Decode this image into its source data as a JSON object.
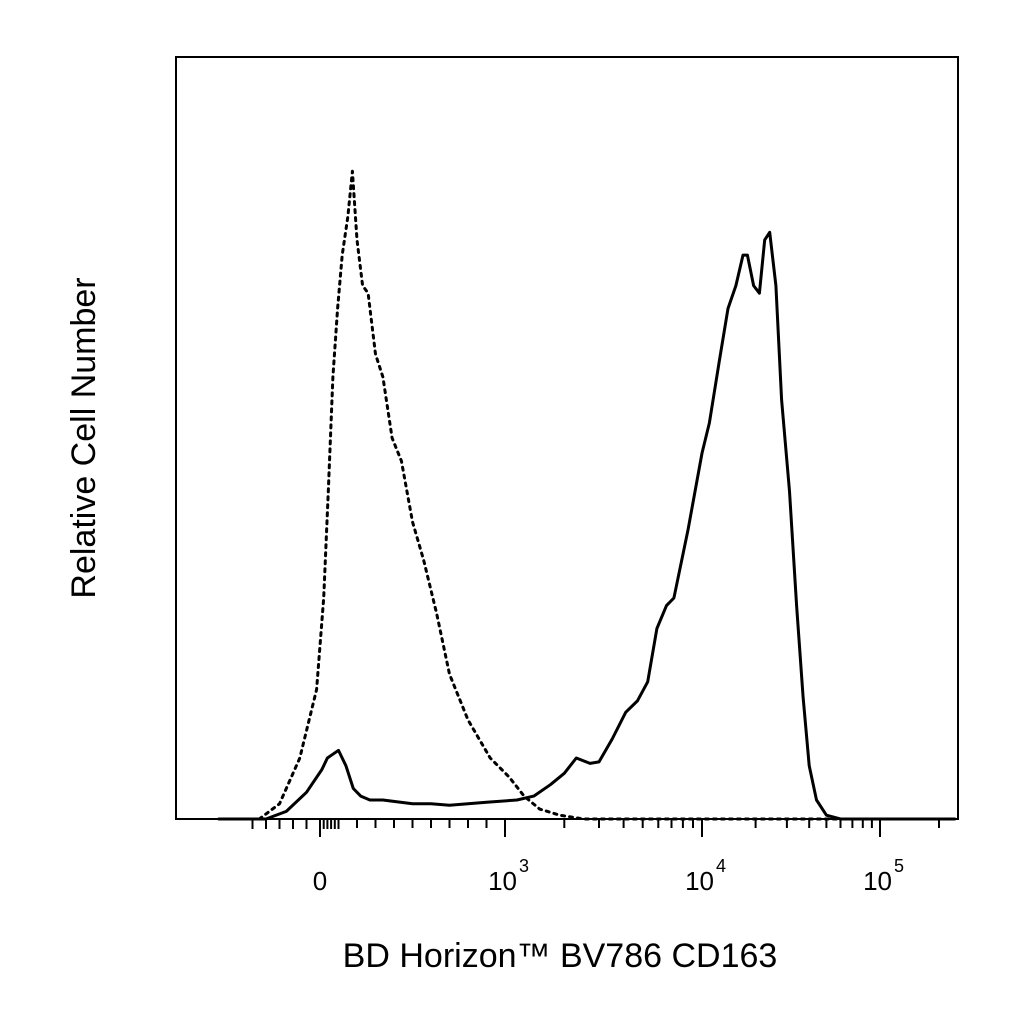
{
  "chart_data": {
    "type": "line",
    "title": "",
    "xlabel": "BD Horizon™ BV786 CD163",
    "ylabel": "Relative Cell Number",
    "x_scale": "biexponential",
    "x_ticks": [
      {
        "value": 0,
        "base": "0",
        "exp": ""
      },
      {
        "value": 1000,
        "base": "10",
        "exp": "3"
      },
      {
        "value": 10000,
        "base": "10",
        "exp": "4"
      },
      {
        "value": 100000,
        "base": "10",
        "exp": "5"
      }
    ],
    "xlim": [
      -150,
      250000
    ],
    "ylim": [
      0,
      1
    ],
    "grid": false,
    "legend": "none",
    "series": [
      {
        "line_style": "dotted",
        "color": "#000000",
        "points": [
          [
            -90,
            0.0
          ],
          [
            -60,
            0.02
          ],
          [
            -30,
            0.08
          ],
          [
            -5,
            0.17
          ],
          [
            20,
            0.29
          ],
          [
            45,
            0.43
          ],
          [
            70,
            0.58
          ],
          [
            95,
            0.67
          ],
          [
            120,
            0.74
          ],
          [
            150,
            0.79
          ],
          [
            175,
            0.85
          ],
          [
            200,
            0.76
          ],
          [
            230,
            0.7
          ],
          [
            260,
            0.69
          ],
          [
            300,
            0.61
          ],
          [
            340,
            0.58
          ],
          [
            390,
            0.5
          ],
          [
            440,
            0.47
          ],
          [
            500,
            0.39
          ],
          [
            560,
            0.34
          ],
          [
            630,
            0.27
          ],
          [
            700,
            0.19
          ],
          [
            800,
            0.13
          ],
          [
            920,
            0.08
          ],
          [
            1050,
            0.055
          ],
          [
            1250,
            0.03
          ],
          [
            1500,
            0.013
          ],
          [
            1900,
            0.005
          ],
          [
            2500,
            0.0
          ],
          [
            8000,
            0.0
          ],
          [
            240000,
            0.0
          ]
        ]
      },
      {
        "line_style": "solid",
        "color": "#000000",
        "points": [
          [
            -150,
            0.0
          ],
          [
            -80,
            0.0
          ],
          [
            -50,
            0.01
          ],
          [
            -20,
            0.035
          ],
          [
            10,
            0.065
          ],
          [
            40,
            0.08
          ],
          [
            70,
            0.085
          ],
          [
            100,
            0.09
          ],
          [
            140,
            0.07
          ],
          [
            180,
            0.04
          ],
          [
            220,
            0.03
          ],
          [
            270,
            0.025
          ],
          [
            340,
            0.025
          ],
          [
            500,
            0.02
          ],
          [
            600,
            0.02
          ],
          [
            700,
            0.018
          ],
          [
            900,
            0.022
          ],
          [
            1150,
            0.025
          ],
          [
            1400,
            0.03
          ],
          [
            1700,
            0.045
          ],
          [
            2000,
            0.06
          ],
          [
            2300,
            0.08
          ],
          [
            2700,
            0.073
          ],
          [
            3000,
            0.075
          ],
          [
            3500,
            0.105
          ],
          [
            4100,
            0.14
          ],
          [
            4700,
            0.155
          ],
          [
            5300,
            0.18
          ],
          [
            5900,
            0.25
          ],
          [
            6600,
            0.28
          ],
          [
            7200,
            0.29
          ],
          [
            8500,
            0.38
          ],
          [
            10000,
            0.48
          ],
          [
            11000,
            0.52
          ],
          [
            12500,
            0.6
          ],
          [
            14000,
            0.67
          ],
          [
            15500,
            0.7
          ],
          [
            17000,
            0.74
          ],
          [
            18000,
            0.74
          ],
          [
            19500,
            0.7
          ],
          [
            21000,
            0.69
          ],
          [
            22500,
            0.76
          ],
          [
            24000,
            0.77
          ],
          [
            26000,
            0.7
          ],
          [
            28000,
            0.55
          ],
          [
            31000,
            0.43
          ],
          [
            34000,
            0.28
          ],
          [
            37000,
            0.16
          ],
          [
            40000,
            0.07
          ],
          [
            44000,
            0.025
          ],
          [
            50000,
            0.005
          ],
          [
            60000,
            0.0
          ],
          [
            240000,
            0.0
          ]
        ]
      }
    ]
  }
}
